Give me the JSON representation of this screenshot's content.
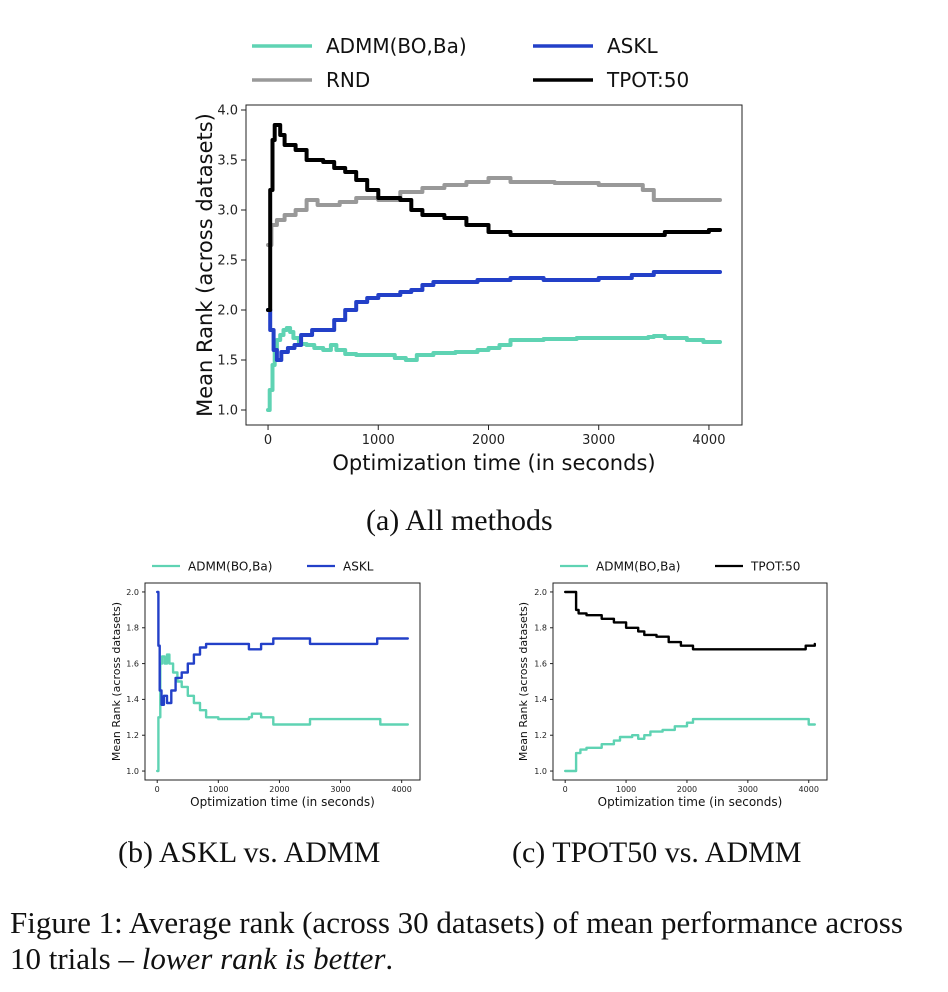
{
  "chart_data": [
    {
      "type": "line",
      "xlabel": "Optimization time (in seconds)",
      "ylabel": "Mean Rank (across datasets)",
      "xlim": [
        -200,
        4300
      ],
      "ylim": [
        0.85,
        4.05
      ],
      "xticks": [
        0,
        1000,
        2000,
        3000,
        4000
      ],
      "yticks": [
        1.0,
        1.5,
        2.0,
        2.5,
        3.0,
        3.5,
        4.0
      ],
      "ytick_labels": [
        "1.0",
        "1.5",
        "2.0",
        "2.5",
        "3.0",
        "3.5",
        "4.0"
      ],
      "legend": "top, above plot, 2 columns",
      "grid": false,
      "series": [
        {
          "name": "ADMM(BO,Ba)",
          "color": "#5fd3b3",
          "points": [
            [
              0,
              1.0
            ],
            [
              15,
              1.2
            ],
            [
              40,
              1.45
            ],
            [
              60,
              1.6
            ],
            [
              80,
              1.7
            ],
            [
              110,
              1.75
            ],
            [
              140,
              1.8
            ],
            [
              170,
              1.82
            ],
            [
              200,
              1.78
            ],
            [
              230,
              1.72
            ],
            [
              280,
              1.66
            ],
            [
              350,
              1.65
            ],
            [
              420,
              1.62
            ],
            [
              500,
              1.6
            ],
            [
              570,
              1.65
            ],
            [
              620,
              1.6
            ],
            [
              700,
              1.56
            ],
            [
              800,
              1.55
            ],
            [
              900,
              1.55
            ],
            [
              1000,
              1.55
            ],
            [
              1150,
              1.52
            ],
            [
              1250,
              1.5
            ],
            [
              1350,
              1.55
            ],
            [
              1500,
              1.57
            ],
            [
              1700,
              1.58
            ],
            [
              1900,
              1.6
            ],
            [
              2000,
              1.62
            ],
            [
              2100,
              1.65
            ],
            [
              2200,
              1.7
            ],
            [
              2500,
              1.71
            ],
            [
              2800,
              1.72
            ],
            [
              3200,
              1.72
            ],
            [
              3450,
              1.73
            ],
            [
              3500,
              1.74
            ],
            [
              3600,
              1.72
            ],
            [
              3800,
              1.7
            ],
            [
              3950,
              1.68
            ],
            [
              4100,
              1.68
            ]
          ]
        },
        {
          "name": "ASKL",
          "color": "#2340c8",
          "points": [
            [
              0,
              2.0
            ],
            [
              20,
              1.8
            ],
            [
              50,
              1.6
            ],
            [
              80,
              1.5
            ],
            [
              120,
              1.58
            ],
            [
              180,
              1.62
            ],
            [
              240,
              1.65
            ],
            [
              300,
              1.75
            ],
            [
              400,
              1.8
            ],
            [
              500,
              1.8
            ],
            [
              600,
              1.9
            ],
            [
              700,
              2.0
            ],
            [
              800,
              2.08
            ],
            [
              900,
              2.12
            ],
            [
              1000,
              2.15
            ],
            [
              1200,
              2.18
            ],
            [
              1300,
              2.2
            ],
            [
              1400,
              2.25
            ],
            [
              1500,
              2.28
            ],
            [
              1600,
              2.28
            ],
            [
              1800,
              2.28
            ],
            [
              1900,
              2.3
            ],
            [
              2100,
              2.3
            ],
            [
              2200,
              2.32
            ],
            [
              2500,
              2.3
            ],
            [
              3000,
              2.32
            ],
            [
              3300,
              2.35
            ],
            [
              3500,
              2.38
            ],
            [
              3700,
              2.38
            ],
            [
              4100,
              2.38
            ]
          ]
        },
        {
          "name": "RND",
          "color": "#999999",
          "points": [
            [
              0,
              2.65
            ],
            [
              30,
              2.85
            ],
            [
              80,
              2.9
            ],
            [
              150,
              2.95
            ],
            [
              250,
              3.0
            ],
            [
              350,
              3.1
            ],
            [
              450,
              3.05
            ],
            [
              550,
              3.05
            ],
            [
              650,
              3.08
            ],
            [
              800,
              3.12
            ],
            [
              1000,
              3.1
            ],
            [
              1200,
              3.18
            ],
            [
              1400,
              3.22
            ],
            [
              1600,
              3.25
            ],
            [
              1800,
              3.28
            ],
            [
              2000,
              3.32
            ],
            [
              2200,
              3.28
            ],
            [
              2600,
              3.27
            ],
            [
              3000,
              3.25
            ],
            [
              3400,
              3.2
            ],
            [
              3500,
              3.1
            ],
            [
              3600,
              3.1
            ],
            [
              4100,
              3.1
            ]
          ]
        },
        {
          "name": "TPOT:50",
          "color": "#000000",
          "points": [
            [
              0,
              2.0
            ],
            [
              20,
              3.2
            ],
            [
              40,
              3.7
            ],
            [
              60,
              3.85
            ],
            [
              80,
              3.85
            ],
            [
              110,
              3.75
            ],
            [
              150,
              3.65
            ],
            [
              250,
              3.6
            ],
            [
              350,
              3.5
            ],
            [
              500,
              3.48
            ],
            [
              600,
              3.42
            ],
            [
              700,
              3.38
            ],
            [
              800,
              3.3
            ],
            [
              900,
              3.2
            ],
            [
              1000,
              3.12
            ],
            [
              1200,
              3.1
            ],
            [
              1300,
              3.0
            ],
            [
              1400,
              2.95
            ],
            [
              1600,
              2.92
            ],
            [
              1800,
              2.85
            ],
            [
              2000,
              2.78
            ],
            [
              2200,
              2.75
            ],
            [
              2600,
              2.75
            ],
            [
              3000,
              2.75
            ],
            [
              3500,
              2.75
            ],
            [
              3600,
              2.78
            ],
            [
              3900,
              2.78
            ],
            [
              4000,
              2.8
            ],
            [
              4100,
              2.8
            ]
          ]
        }
      ]
    },
    {
      "type": "line",
      "xlabel": "Optimization time (in seconds)",
      "ylabel": "Mean Rank (across datasets)",
      "xlim": [
        -200,
        4300
      ],
      "ylim": [
        0.95,
        2.05
      ],
      "xticks": [
        0,
        1000,
        2000,
        3000,
        4000
      ],
      "yticks": [
        1.0,
        1.2,
        1.4,
        1.6,
        1.8,
        2.0
      ],
      "ytick_labels": [
        "1.0",
        "1.2",
        "1.4",
        "1.6",
        "1.8",
        "2.0"
      ],
      "legend": "top, above plot, 2 columns",
      "grid": false,
      "series": [
        {
          "name": "ADMM(BO,Ba)",
          "color": "#5fd3b3",
          "points": [
            [
              0,
              1.0
            ],
            [
              20,
              1.3
            ],
            [
              50,
              1.6
            ],
            [
              80,
              1.64
            ],
            [
              120,
              1.6
            ],
            [
              160,
              1.65
            ],
            [
              200,
              1.6
            ],
            [
              260,
              1.55
            ],
            [
              330,
              1.5
            ],
            [
              400,
              1.47
            ],
            [
              500,
              1.42
            ],
            [
              600,
              1.38
            ],
            [
              700,
              1.34
            ],
            [
              800,
              1.3
            ],
            [
              1000,
              1.29
            ],
            [
              1500,
              1.3
            ],
            [
              1550,
              1.32
            ],
            [
              1700,
              1.3
            ],
            [
              1900,
              1.26
            ],
            [
              2400,
              1.26
            ],
            [
              2500,
              1.29
            ],
            [
              3500,
              1.29
            ],
            [
              3650,
              1.26
            ],
            [
              4100,
              1.26
            ]
          ]
        },
        {
          "name": "ASKL",
          "color": "#2340c8",
          "points": [
            [
              0,
              2.0
            ],
            [
              20,
              1.7
            ],
            [
              40,
              1.45
            ],
            [
              70,
              1.37
            ],
            [
              110,
              1.42
            ],
            [
              160,
              1.38
            ],
            [
              230,
              1.45
            ],
            [
              300,
              1.52
            ],
            [
              400,
              1.55
            ],
            [
              500,
              1.6
            ],
            [
              600,
              1.65
            ],
            [
              700,
              1.69
            ],
            [
              800,
              1.71
            ],
            [
              1200,
              1.71
            ],
            [
              1500,
              1.68
            ],
            [
              1700,
              1.71
            ],
            [
              1900,
              1.74
            ],
            [
              2400,
              1.74
            ],
            [
              2500,
              1.71
            ],
            [
              3500,
              1.71
            ],
            [
              3600,
              1.74
            ],
            [
              4100,
              1.74
            ]
          ]
        }
      ]
    },
    {
      "type": "line",
      "xlabel": "Optimization time (in seconds)",
      "ylabel": "Mean Rank (across datasets)",
      "xlim": [
        -200,
        4300
      ],
      "ylim": [
        0.95,
        2.05
      ],
      "xticks": [
        0,
        1000,
        2000,
        3000,
        4000
      ],
      "yticks": [
        1.0,
        1.2,
        1.4,
        1.6,
        1.8,
        2.0
      ],
      "ytick_labels": [
        "1.0",
        "1.2",
        "1.4",
        "1.6",
        "1.8",
        "2.0"
      ],
      "legend": "top, above plot, 2 columns",
      "grid": false,
      "series": [
        {
          "name": "ADMM(BO,Ba)",
          "color": "#5fd3b3",
          "points": [
            [
              0,
              1.0
            ],
            [
              150,
              1.0
            ],
            [
              180,
              1.1
            ],
            [
              250,
              1.12
            ],
            [
              350,
              1.13
            ],
            [
              600,
              1.15
            ],
            [
              800,
              1.17
            ],
            [
              900,
              1.19
            ],
            [
              1100,
              1.2
            ],
            [
              1200,
              1.18
            ],
            [
              1300,
              1.2
            ],
            [
              1400,
              1.22
            ],
            [
              1600,
              1.23
            ],
            [
              1800,
              1.25
            ],
            [
              2000,
              1.27
            ],
            [
              2100,
              1.29
            ],
            [
              3900,
              1.29
            ],
            [
              4000,
              1.26
            ],
            [
              4100,
              1.26
            ]
          ]
        },
        {
          "name": "TPOT:50",
          "color": "#000000",
          "points": [
            [
              0,
              2.0
            ],
            [
              150,
              2.0
            ],
            [
              180,
              1.9
            ],
            [
              220,
              1.88
            ],
            [
              350,
              1.87
            ],
            [
              600,
              1.85
            ],
            [
              800,
              1.83
            ],
            [
              1000,
              1.8
            ],
            [
              1200,
              1.78
            ],
            [
              1300,
              1.76
            ],
            [
              1500,
              1.75
            ],
            [
              1700,
              1.72
            ],
            [
              1900,
              1.7
            ],
            [
              2100,
              1.68
            ],
            [
              2500,
              1.68
            ],
            [
              3000,
              1.68
            ],
            [
              3500,
              1.68
            ],
            [
              3900,
              1.68
            ],
            [
              3950,
              1.7
            ],
            [
              4100,
              1.71
            ]
          ]
        }
      ]
    }
  ],
  "captions": {
    "a": "(a) All methods",
    "b": "(b) ASKL vs. ADMM",
    "c": "(c) TPOT50 vs. ADMM"
  },
  "figure_caption": {
    "prefix": "Figure 1: Average rank (across 30 datasets) of mean performance across 10 trials – ",
    "emphasis": "lower rank is better",
    "suffix": "."
  }
}
